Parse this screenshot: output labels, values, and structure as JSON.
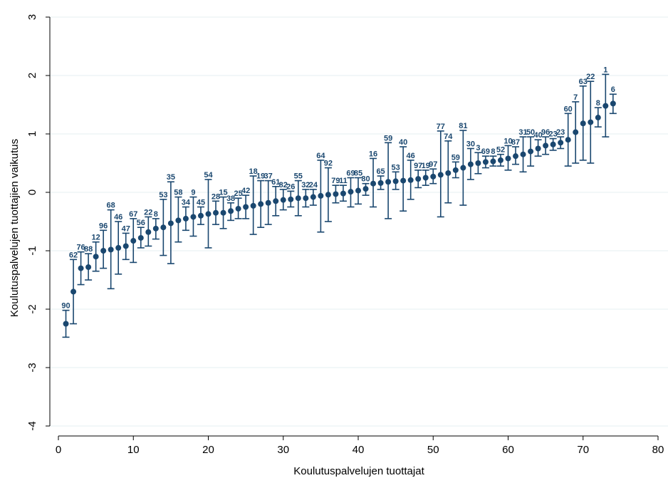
{
  "chart_data": {
    "type": "scatter",
    "title": "",
    "xlabel": "Koulutuspalvelujen tuottajat",
    "ylabel": "Koulutuspalvelujen tuottajien vaikutus",
    "xlim": [
      0,
      80
    ],
    "ylim": [
      -4,
      3
    ],
    "xticks": [
      0,
      10,
      20,
      30,
      40,
      50,
      60,
      70,
      80
    ],
    "yticks": [
      -4,
      -3,
      -2,
      -1,
      0,
      1,
      2,
      3
    ],
    "grid": "horizontal",
    "legend": "none",
    "color": "#1a476f",
    "gridColor": "#eaf2f3",
    "points": [
      {
        "x": 1,
        "y": -2.25,
        "lo": -2.48,
        "hi": -2.02,
        "label": "90"
      },
      {
        "x": 2,
        "y": -1.7,
        "lo": -2.25,
        "hi": -1.15,
        "label": "62"
      },
      {
        "x": 3,
        "y": -1.3,
        "lo": -1.58,
        "hi": -1.02,
        "label": "76"
      },
      {
        "x": 4,
        "y": -1.28,
        "lo": -1.5,
        "hi": -1.05,
        "label": "88"
      },
      {
        "x": 5,
        "y": -1.1,
        "lo": -1.35,
        "hi": -0.85,
        "label": "12"
      },
      {
        "x": 6,
        "y": -1.0,
        "lo": -1.3,
        "hi": -0.65,
        "label": "96"
      },
      {
        "x": 7,
        "y": -0.98,
        "lo": -1.65,
        "hi": -0.3,
        "label": "68"
      },
      {
        "x": 8,
        "y": -0.95,
        "lo": -1.4,
        "hi": -0.5,
        "label": "46"
      },
      {
        "x": 9,
        "y": -0.92,
        "lo": -1.15,
        "hi": -0.7,
        "label": "47"
      },
      {
        "x": 10,
        "y": -0.83,
        "lo": -1.2,
        "hi": -0.45,
        "label": "67"
      },
      {
        "x": 11,
        "y": -0.78,
        "lo": -0.95,
        "hi": -0.6,
        "label": "56"
      },
      {
        "x": 12,
        "y": -0.68,
        "lo": -0.92,
        "hi": -0.42,
        "label": "22"
      },
      {
        "x": 13,
        "y": -0.62,
        "lo": -0.8,
        "hi": -0.45,
        "label": "8"
      },
      {
        "x": 14,
        "y": -0.6,
        "lo": -1.08,
        "hi": -0.12,
        "label": "53"
      },
      {
        "x": 15,
        "y": -0.53,
        "lo": -1.22,
        "hi": 0.18,
        "label": "35"
      },
      {
        "x": 16,
        "y": -0.48,
        "lo": -0.85,
        "hi": -0.08,
        "label": "58"
      },
      {
        "x": 17,
        "y": -0.45,
        "lo": -0.65,
        "hi": -0.25,
        "label": "34"
      },
      {
        "x": 18,
        "y": -0.42,
        "lo": -0.75,
        "hi": -0.08,
        "label": "9"
      },
      {
        "x": 19,
        "y": -0.4,
        "lo": -0.55,
        "hi": -0.25,
        "label": "45"
      },
      {
        "x": 20,
        "y": -0.37,
        "lo": -0.95,
        "hi": 0.22,
        "label": "54"
      },
      {
        "x": 21,
        "y": -0.35,
        "lo": -0.55,
        "hi": -0.15,
        "label": "28"
      },
      {
        "x": 22,
        "y": -0.35,
        "lo": -0.62,
        "hi": -0.08,
        "label": "15"
      },
      {
        "x": 23,
        "y": -0.32,
        "lo": -0.48,
        "hi": -0.18,
        "label": "38"
      },
      {
        "x": 24,
        "y": -0.28,
        "lo": -0.45,
        "hi": -0.1,
        "label": "25"
      },
      {
        "x": 25,
        "y": -0.25,
        "lo": -0.45,
        "hi": -0.05,
        "label": "42"
      },
      {
        "x": 26,
        "y": -0.23,
        "lo": -0.72,
        "hi": 0.28,
        "label": "18"
      },
      {
        "x": 27,
        "y": -0.2,
        "lo": -0.6,
        "hi": 0.2,
        "label": "19"
      },
      {
        "x": 28,
        "y": -0.18,
        "lo": -0.55,
        "hi": 0.2,
        "label": "37"
      },
      {
        "x": 29,
        "y": -0.15,
        "lo": -0.4,
        "hi": 0.1,
        "label": "61"
      },
      {
        "x": 30,
        "y": -0.13,
        "lo": -0.3,
        "hi": 0.05,
        "label": "82"
      },
      {
        "x": 31,
        "y": -0.12,
        "lo": -0.25,
        "hi": 0.02,
        "label": "26"
      },
      {
        "x": 32,
        "y": -0.1,
        "lo": -0.4,
        "hi": 0.2,
        "label": "55"
      },
      {
        "x": 33,
        "y": -0.1,
        "lo": -0.25,
        "hi": 0.05,
        "label": "32"
      },
      {
        "x": 34,
        "y": -0.08,
        "lo": -0.22,
        "hi": 0.05,
        "label": "24"
      },
      {
        "x": 35,
        "y": -0.06,
        "lo": -0.68,
        "hi": 0.55,
        "label": "64"
      },
      {
        "x": 36,
        "y": -0.04,
        "lo": -0.5,
        "hi": 0.42,
        "label": "92"
      },
      {
        "x": 37,
        "y": -0.03,
        "lo": -0.18,
        "hi": 0.12,
        "label": "79"
      },
      {
        "x": 38,
        "y": -0.02,
        "lo": -0.15,
        "hi": 0.12,
        "label": "11"
      },
      {
        "x": 39,
        "y": 0.01,
        "lo": -0.25,
        "hi": 0.25,
        "label": "69"
      },
      {
        "x": 40,
        "y": 0.03,
        "lo": -0.2,
        "hi": 0.25,
        "label": "85"
      },
      {
        "x": 41,
        "y": 0.06,
        "lo": -0.05,
        "hi": 0.15,
        "label": "80"
      },
      {
        "x": 42,
        "y": 0.15,
        "lo": -0.25,
        "hi": 0.58,
        "label": "16"
      },
      {
        "x": 43,
        "y": 0.16,
        "lo": 0.05,
        "hi": 0.28,
        "label": "65"
      },
      {
        "x": 44,
        "y": 0.18,
        "lo": -0.45,
        "hi": 0.85,
        "label": "59"
      },
      {
        "x": 45,
        "y": 0.19,
        "lo": 0.05,
        "hi": 0.35,
        "label": "53"
      },
      {
        "x": 46,
        "y": 0.2,
        "lo": -0.32,
        "hi": 0.78,
        "label": "40"
      },
      {
        "x": 47,
        "y": 0.21,
        "lo": -0.12,
        "hi": 0.55,
        "label": "46"
      },
      {
        "x": 48,
        "y": 0.23,
        "lo": 0.08,
        "hi": 0.38,
        "label": "97"
      },
      {
        "x": 49,
        "y": 0.25,
        "lo": 0.12,
        "hi": 0.38,
        "label": "19"
      },
      {
        "x": 50,
        "y": 0.27,
        "lo": 0.15,
        "hi": 0.4,
        "label": "97"
      },
      {
        "x": 51,
        "y": 0.3,
        "lo": -0.42,
        "hi": 1.05,
        "label": "77"
      },
      {
        "x": 52,
        "y": 0.33,
        "lo": -0.18,
        "hi": 0.88,
        "label": "74"
      },
      {
        "x": 53,
        "y": 0.38,
        "lo": 0.25,
        "hi": 0.52,
        "label": "59"
      },
      {
        "x": 54,
        "y": 0.42,
        "lo": -0.22,
        "hi": 1.06,
        "label": "81"
      },
      {
        "x": 55,
        "y": 0.48,
        "lo": 0.22,
        "hi": 0.75,
        "label": "30"
      },
      {
        "x": 56,
        "y": 0.5,
        "lo": 0.32,
        "hi": 0.68,
        "label": "3"
      },
      {
        "x": 57,
        "y": 0.52,
        "lo": 0.42,
        "hi": 0.62,
        "label": "69"
      },
      {
        "x": 58,
        "y": 0.53,
        "lo": 0.45,
        "hi": 0.62,
        "label": "8"
      },
      {
        "x": 59,
        "y": 0.55,
        "lo": 0.45,
        "hi": 0.65,
        "label": "52"
      },
      {
        "x": 60,
        "y": 0.58,
        "lo": 0.38,
        "hi": 0.8,
        "label": "10"
      },
      {
        "x": 61,
        "y": 0.62,
        "lo": 0.48,
        "hi": 0.78,
        "label": "87"
      },
      {
        "x": 62,
        "y": 0.65,
        "lo": 0.35,
        "hi": 0.95,
        "label": "31"
      },
      {
        "x": 63,
        "y": 0.7,
        "lo": 0.45,
        "hi": 0.95,
        "label": "50"
      },
      {
        "x": 64,
        "y": 0.75,
        "lo": 0.62,
        "hi": 0.9,
        "label": "40"
      },
      {
        "x": 65,
        "y": 0.8,
        "lo": 0.65,
        "hi": 0.95,
        "label": "96"
      },
      {
        "x": 66,
        "y": 0.82,
        "lo": 0.72,
        "hi": 0.92,
        "label": "23"
      },
      {
        "x": 67,
        "y": 0.85,
        "lo": 0.75,
        "hi": 0.95,
        "label": "23"
      },
      {
        "x": 68,
        "y": 0.9,
        "lo": 0.45,
        "hi": 1.35,
        "label": "60"
      },
      {
        "x": 69,
        "y": 1.03,
        "lo": 0.5,
        "hi": 1.55,
        "label": "7"
      },
      {
        "x": 70,
        "y": 1.18,
        "lo": 0.55,
        "hi": 1.82,
        "label": "63"
      },
      {
        "x": 71,
        "y": 1.2,
        "lo": 0.5,
        "hi": 1.9,
        "label": "22"
      },
      {
        "x": 72,
        "y": 1.28,
        "lo": 1.12,
        "hi": 1.45,
        "label": "8"
      },
      {
        "x": 73,
        "y": 1.48,
        "lo": 0.95,
        "hi": 2.02,
        "label": "1"
      },
      {
        "x": 74,
        "y": 1.52,
        "lo": 1.35,
        "hi": 1.68,
        "label": "6"
      }
    ]
  }
}
